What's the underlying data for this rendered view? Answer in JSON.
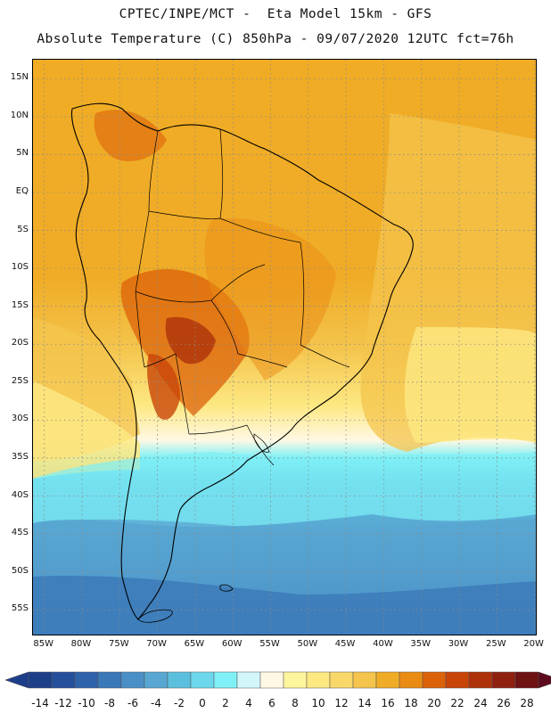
{
  "header": {
    "line1": "CPTEC/INPE/MCT -  Eta Model 15km - GFS",
    "line2": "Absolute Temperature (C) 850hPa - 09/07/2020 12UTC fct=76h"
  },
  "map": {
    "region": "South America",
    "variable": "Absolute Temperature (C) 850hPa",
    "gridlines": "dotted",
    "lat_labels": [
      "15N",
      "10N",
      "5N",
      "EQ",
      "5S",
      "10S",
      "15S",
      "20S",
      "25S",
      "30S",
      "35S",
      "40S",
      "45S",
      "50S",
      "55S"
    ],
    "lon_labels": [
      "85W",
      "80W",
      "75W",
      "70W",
      "65W",
      "60W",
      "55W",
      "50W",
      "45W",
      "40W",
      "35W",
      "30W",
      "25W",
      "20W"
    ]
  },
  "colorbar": {
    "labels": [
      "-14",
      "-12",
      "-10",
      "-8",
      "-6",
      "-4",
      "-2",
      "0",
      "2",
      "4",
      "6",
      "8",
      "10",
      "12",
      "14",
      "16",
      "18",
      "20",
      "22",
      "24",
      "26",
      "28"
    ],
    "colors": [
      "#1d3f8a",
      "#254f9a",
      "#2e62aa",
      "#3a78b8",
      "#4a90c6",
      "#58a6d2",
      "#5bc0de",
      "#6dd8ec",
      "#7ff0f6",
      "#d2f6fb",
      "#fff8e4",
      "#fff59c",
      "#fde882",
      "#f9d86a",
      "#f4c44c",
      "#f0ac26",
      "#ea8c14",
      "#dc620a",
      "#c84508",
      "#ad320a",
      "#8f2010",
      "#6e1212"
    ],
    "under_color": "#1d3f8a",
    "over_color": "#5e0a1e"
  }
}
